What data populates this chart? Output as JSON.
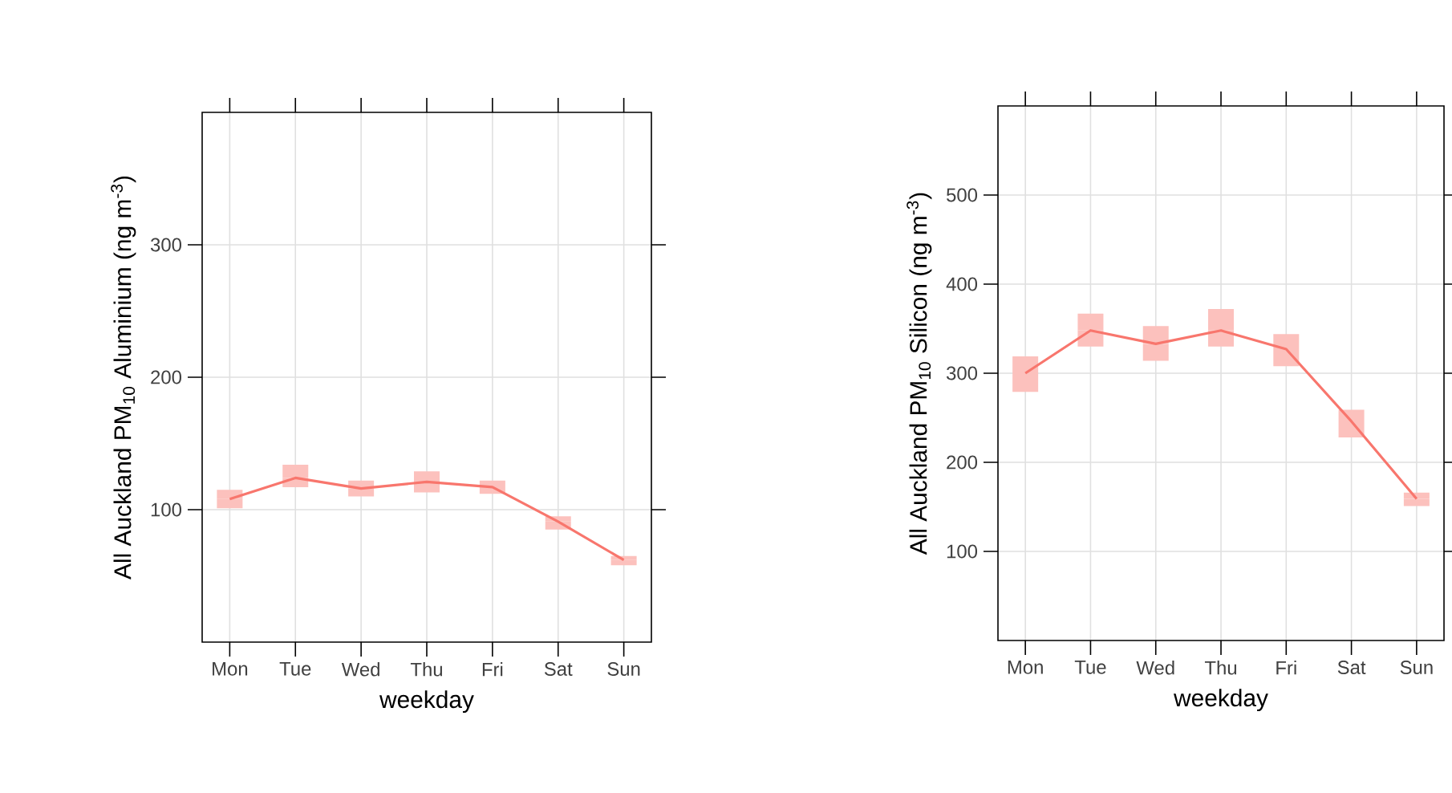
{
  "chart_data": [
    {
      "type": "line",
      "xlabel": "weekday",
      "ylabel": "All Auckland PM$_{10}$ Aluminium (ng m$^{-3}$)",
      "categories": [
        "Mon",
        "Tue",
        "Wed",
        "Thu",
        "Fri",
        "Sat",
        "Sun"
      ],
      "series": [
        {
          "color": "#f8766d",
          "values": [
            108,
            124,
            116,
            121,
            117,
            91,
            62
          ],
          "errors": [
            [
              101,
              115
            ],
            [
              117,
              134
            ],
            [
              110,
              122
            ],
            [
              113,
              129
            ],
            [
              112,
              122
            ],
            [
              85,
              95
            ],
            [
              58,
              65
            ]
          ]
        }
      ],
      "ylim": [
        0,
        400
      ],
      "yticks": [
        100,
        200,
        300
      ],
      "grid": true,
      "marker": "none",
      "line_style": "solid"
    },
    {
      "type": "line",
      "xlabel": "weekday",
      "ylabel": "All Auckland PM$_{10}$ Silicon (ng m$^{-3}$)",
      "categories": [
        "Mon",
        "Tue",
        "Wed",
        "Thu",
        "Fri",
        "Sat",
        "Sun"
      ],
      "series": [
        {
          "color": "#f8766d",
          "values": [
            300,
            348,
            333,
            348,
            327,
            246,
            159
          ],
          "errors": [
            [
              279,
              319
            ],
            [
              330,
              367
            ],
            [
              314,
              353
            ],
            [
              330,
              372
            ],
            [
              308,
              344
            ],
            [
              228,
              259
            ],
            [
              151,
              166
            ]
          ]
        }
      ],
      "ylim": [
        0,
        600
      ],
      "yticks": [
        100,
        200,
        300,
        400,
        500
      ],
      "grid": true,
      "marker": "none",
      "line_style": "solid"
    }
  ]
}
